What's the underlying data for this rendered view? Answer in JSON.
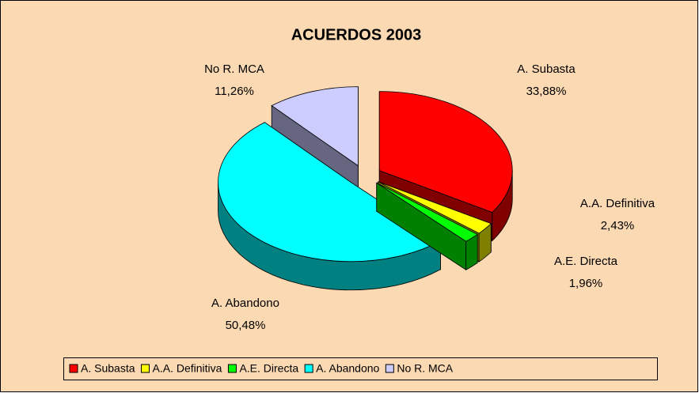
{
  "chart_data": {
    "type": "pie",
    "title": "ACUERDOS 2003",
    "categories": [
      "A. Subasta",
      "A.A. Definitiva",
      "A.E. Directa",
      "A. Abandono",
      "No R. MCA"
    ],
    "values": [
      33.88,
      2.43,
      1.96,
      50.48,
      11.26
    ],
    "value_labels": [
      "33,88%",
      "2,43%",
      "1,96%",
      "50,48%",
      "11,26%"
    ],
    "colors": [
      "#ff0000",
      "#ffff00",
      "#00ff00",
      "#00ffff",
      "#ccccff"
    ],
    "legend": "bottom"
  }
}
